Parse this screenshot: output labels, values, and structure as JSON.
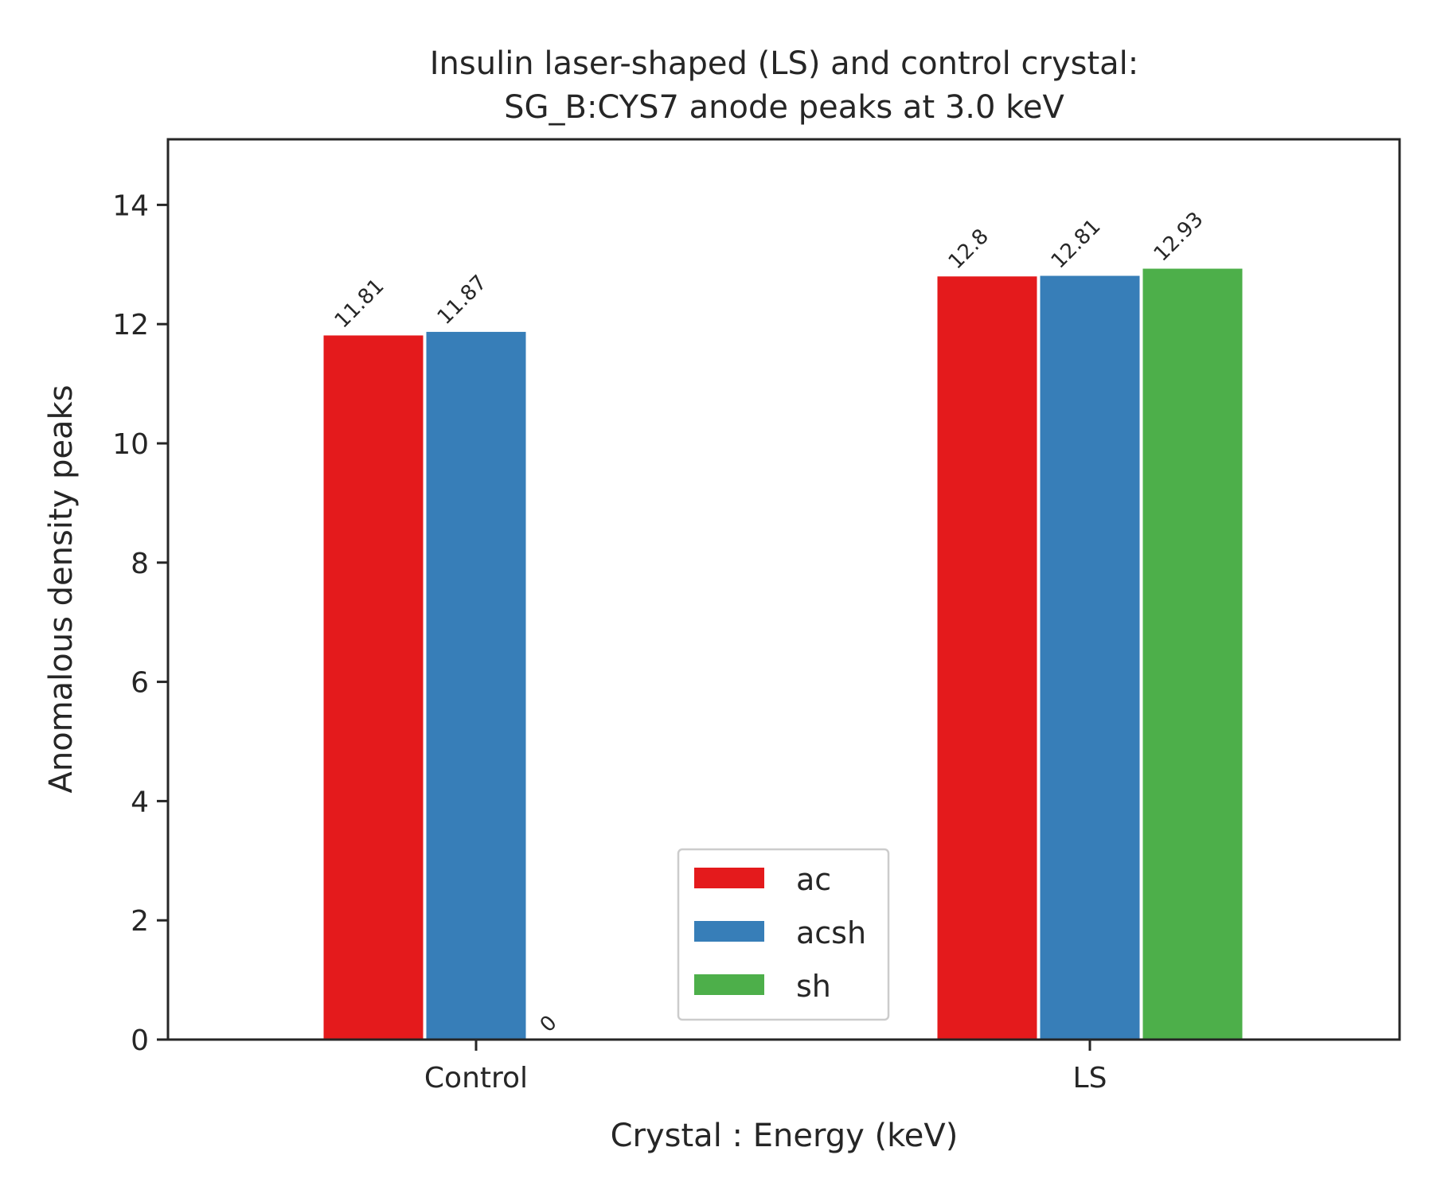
{
  "chart_data": {
    "type": "bar",
    "title_lines": [
      "Insulin laser-shaped (LS) and control crystal:",
      "SG_B:CYS7 anode peaks at 3.0 keV"
    ],
    "xlabel": "Crystal : Energy (keV)",
    "ylabel": "Anomalous density peaks",
    "categories": [
      "Control",
      "LS"
    ],
    "ylim": [
      0,
      15.1
    ],
    "yticks": [
      0,
      2,
      4,
      6,
      8,
      10,
      12,
      14
    ],
    "grid": false,
    "legend_position": "lower center",
    "series": [
      {
        "name": "ac",
        "color": "#e41a1c",
        "values": [
          11.81,
          12.8
        ],
        "labels": [
          "11.81",
          "12.8"
        ]
      },
      {
        "name": "acsh",
        "color": "#377eb8",
        "values": [
          11.87,
          12.81
        ],
        "labels": [
          "11.87",
          "12.81"
        ]
      },
      {
        "name": "sh",
        "color": "#4daf4a",
        "values": [
          0,
          12.93
        ],
        "labels": [
          "0",
          "12.93"
        ]
      }
    ]
  }
}
